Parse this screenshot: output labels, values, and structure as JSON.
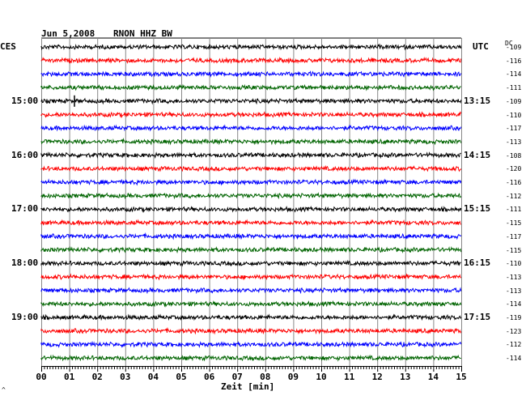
{
  "header": {
    "date": "Jun 5,2008",
    "station": "RNON HHZ BW",
    "left_zone": "CES",
    "right_zone": "UTC",
    "dc_label": "DC",
    "corner_mark": "^"
  },
  "x_axis": {
    "label": "Zeit [min]",
    "ticks": [
      "00",
      "01",
      "02",
      "03",
      "04",
      "05",
      "06",
      "07",
      "08",
      "09",
      "10",
      "11",
      "12",
      "13",
      "14",
      "15"
    ]
  },
  "chart_data": {
    "type": "line",
    "title": "Jun 5,2008  RNON HHZ BW",
    "xlabel": "Zeit [min]",
    "ylabel": "",
    "xlim": [
      0,
      15
    ],
    "grid": true,
    "trace_colors": [
      "#000000",
      "#ff0000",
      "#0000ff",
      "#006400"
    ],
    "rows": 24,
    "left_hour_labels": [
      {
        "row": 4,
        "text": "15:00"
      },
      {
        "row": 8,
        "text": "16:00"
      },
      {
        "row": 12,
        "text": "17:00"
      },
      {
        "row": 16,
        "text": "18:00"
      },
      {
        "row": 20,
        "text": "19:00"
      }
    ],
    "right_hour_labels": [
      {
        "row": 4,
        "text": "13:15"
      },
      {
        "row": 8,
        "text": "14:15"
      },
      {
        "row": 12,
        "text": "15:15"
      },
      {
        "row": 16,
        "text": "16:15"
      },
      {
        "row": 20,
        "text": "17:15"
      }
    ],
    "dc_offsets": [
      "-109",
      "-116",
      "-114",
      "-111",
      "-109",
      "-110",
      "-117",
      "-113",
      "-108",
      "-120",
      "-116",
      "-112",
      "-111",
      "-115",
      "-117",
      "-115",
      "-110",
      "-113",
      "-113",
      "-114",
      "-119",
      "-123",
      "-112",
      "-114"
    ]
  }
}
